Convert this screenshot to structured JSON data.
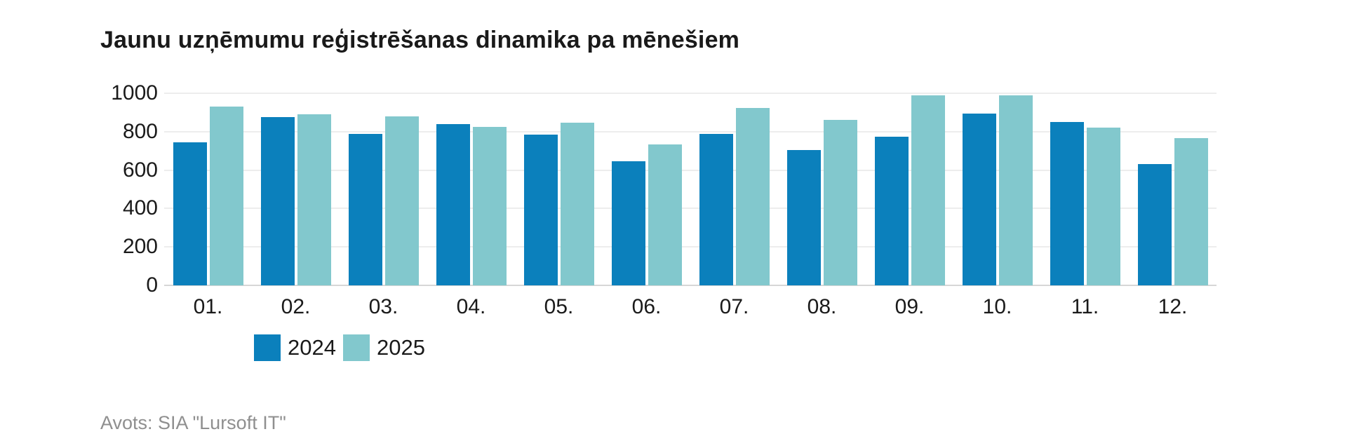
{
  "chart": {
    "title": "Jaunu uzņēmumu reģistrēšanas dinamika pa mēnešiem",
    "source": "Avots: SIA \"Lursoft IT\"",
    "colors": {
      "series_2024": "#0b80bc",
      "series_2025": "#82c8cd",
      "gridline": "#ededed",
      "baseline": "#d6d6d6",
      "text": "#1a1a1a",
      "muted_text": "#8f8f8f",
      "background": "#ffffff"
    }
  },
  "chart_data": {
    "type": "bar",
    "title": "Jaunu uzņēmumu reģistrēšanas dinamika pa mēnešiem",
    "xlabel": "",
    "ylabel": "",
    "categories": [
      "01.",
      "02.",
      "03.",
      "04.",
      "05.",
      "06.",
      "07.",
      "08.",
      "09.",
      "10.",
      "11.",
      "12."
    ],
    "series": [
      {
        "name": "2024",
        "color": "#0b80bc",
        "values": [
          745,
          875,
          790,
          840,
          785,
          645,
          790,
          705,
          775,
          895,
          850,
          630
        ]
      },
      {
        "name": "2025",
        "color": "#82c8cd",
        "values": [
          930,
          890,
          880,
          825,
          845,
          735,
          925,
          860,
          990,
          990,
          820,
          765
        ]
      }
    ],
    "ylim": [
      0,
      1000
    ],
    "yticks": [
      0,
      200,
      400,
      600,
      800,
      1000
    ],
    "grid": "horizontal",
    "legend_position": "bottom-left",
    "source": "Avots: SIA \"Lursoft IT\""
  }
}
